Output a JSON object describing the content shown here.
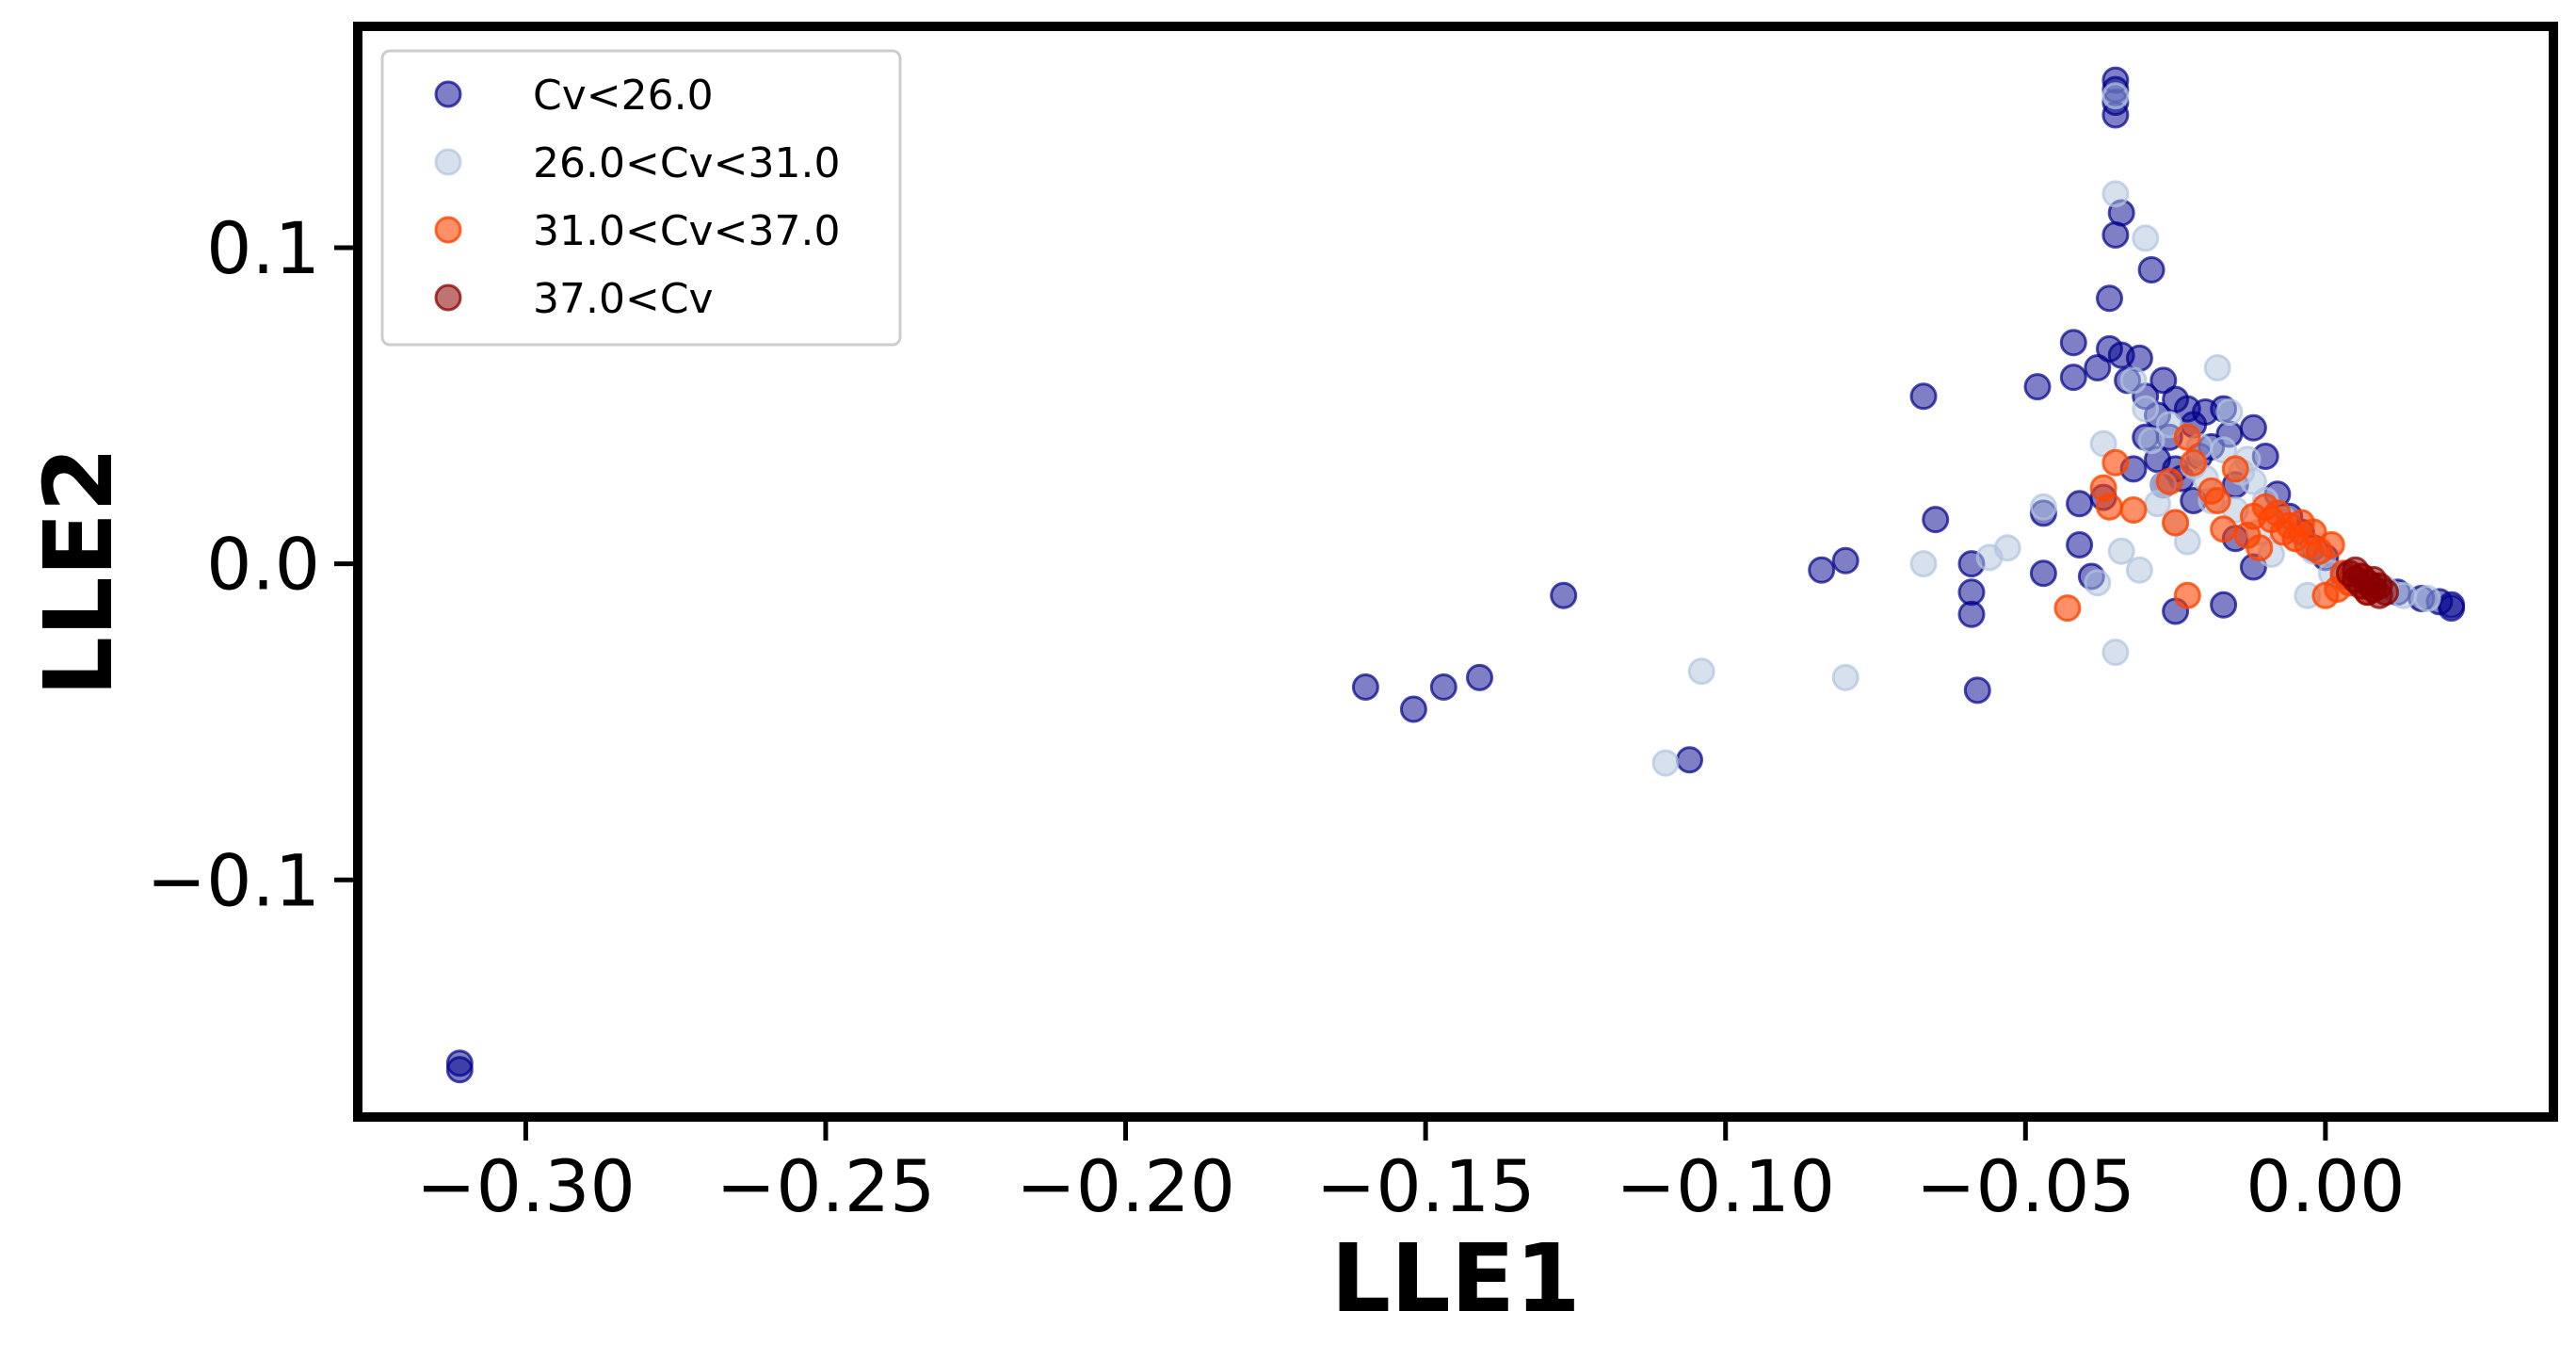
{
  "chart_data": {
    "type": "scatter",
    "title": "",
    "xlabel": "LLE1",
    "ylabel": "LLE2",
    "xlim": [
      -0.328,
      0.038
    ],
    "ylim": [
      -0.175,
      0.17
    ],
    "xticks": [
      -0.3,
      -0.25,
      -0.2,
      -0.15,
      -0.1,
      -0.05,
      0.0
    ],
    "xtick_labels": [
      "−0.30",
      "−0.25",
      "−0.20",
      "−0.15",
      "−0.10",
      "−0.05",
      "0.00"
    ],
    "yticks": [
      0.1,
      0.0,
      -0.1
    ],
    "ytick_labels": [
      "0.1",
      "0.0",
      "−0.1"
    ],
    "grid": false,
    "legend_position": "top-left",
    "series": [
      {
        "name": "Cv<26.0",
        "color": "#00008b",
        "alpha": 0.5,
        "points": [
          [
            -0.311,
            -0.158
          ],
          [
            -0.311,
            -0.16
          ],
          [
            -0.16,
            -0.039
          ],
          [
            -0.152,
            -0.046
          ],
          [
            -0.147,
            -0.039
          ],
          [
            -0.141,
            -0.036
          ],
          [
            -0.127,
            -0.01
          ],
          [
            -0.106,
            -0.062
          ],
          [
            -0.084,
            -0.002
          ],
          [
            -0.08,
            0.001
          ],
          [
            -0.067,
            0.053
          ],
          [
            -0.065,
            0.014
          ],
          [
            -0.059,
            -0.009
          ],
          [
            -0.059,
            -0.016
          ],
          [
            -0.059,
            0.0
          ],
          [
            -0.058,
            -0.04
          ],
          [
            -0.048,
            0.056
          ],
          [
            -0.047,
            0.016
          ],
          [
            -0.047,
            -0.003
          ],
          [
            -0.042,
            0.07
          ],
          [
            -0.042,
            0.059
          ],
          [
            -0.041,
            0.019
          ],
          [
            -0.041,
            0.006
          ],
          [
            -0.039,
            -0.004
          ],
          [
            -0.038,
            0.062
          ],
          [
            -0.037,
            0.021
          ],
          [
            -0.036,
            0.084
          ],
          [
            -0.036,
            0.068
          ],
          [
            -0.035,
            0.104
          ],
          [
            -0.034,
            0.111
          ],
          [
            -0.034,
            0.066
          ],
          [
            -0.035,
            0.153
          ],
          [
            -0.035,
            0.15
          ],
          [
            -0.035,
            0.146
          ],
          [
            -0.035,
            0.142
          ],
          [
            -0.033,
            0.058
          ],
          [
            -0.032,
            0.03
          ],
          [
            -0.031,
            0.065
          ],
          [
            -0.03,
            0.053
          ],
          [
            -0.03,
            0.04
          ],
          [
            -0.029,
            0.093
          ],
          [
            -0.028,
            0.047
          ],
          [
            -0.028,
            0.033
          ],
          [
            -0.027,
            0.058
          ],
          [
            -0.027,
            0.025
          ],
          [
            -0.026,
            0.04
          ],
          [
            -0.025,
            0.052
          ],
          [
            -0.025,
            0.03
          ],
          [
            -0.024,
            0.027
          ],
          [
            -0.023,
            0.049
          ],
          [
            -0.022,
            0.044
          ],
          [
            -0.022,
            0.02
          ],
          [
            -0.021,
            0.034
          ],
          [
            -0.02,
            0.048
          ],
          [
            -0.025,
            -0.015
          ],
          [
            -0.019,
            0.037
          ],
          [
            -0.017,
            0.049
          ],
          [
            -0.016,
            0.041
          ],
          [
            -0.015,
            0.025
          ],
          [
            -0.015,
            0.008
          ],
          [
            -0.017,
            -0.013
          ],
          [
            -0.012,
            0.043
          ],
          [
            -0.01,
            0.034
          ],
          [
            -0.008,
            0.022
          ],
          [
            -0.006,
            0.015
          ],
          [
            -0.004,
            0.01
          ],
          [
            -0.002,
            0.005
          ],
          [
            -0.012,
            -0.001
          ],
          [
            0.0,
            0.002
          ],
          [
            0.003,
            -0.004
          ],
          [
            0.008,
            -0.007
          ],
          [
            0.012,
            -0.009
          ],
          [
            0.016,
            -0.011
          ],
          [
            0.019,
            -0.012
          ],
          [
            0.021,
            -0.013
          ],
          [
            0.021,
            -0.014
          ]
        ]
      },
      {
        "name": "26.0<Cv<31.0",
        "color": "#b0c4de",
        "alpha": 0.5,
        "points": [
          [
            -0.11,
            -0.063
          ],
          [
            -0.104,
            -0.034
          ],
          [
            -0.08,
            -0.036
          ],
          [
            -0.067,
            0.0
          ],
          [
            -0.056,
            0.002
          ],
          [
            -0.053,
            0.005
          ],
          [
            -0.047,
            0.018
          ],
          [
            -0.038,
            -0.006
          ],
          [
            -0.037,
            0.038
          ],
          [
            -0.035,
            0.117
          ],
          [
            -0.035,
            0.148
          ],
          [
            -0.034,
            0.004
          ],
          [
            -0.035,
            -0.028
          ],
          [
            -0.032,
            0.058
          ],
          [
            -0.03,
            0.103
          ],
          [
            -0.03,
            0.049
          ],
          [
            -0.031,
            -0.002
          ],
          [
            -0.029,
            0.039
          ],
          [
            -0.028,
            0.019
          ],
          [
            -0.027,
            0.025
          ],
          [
            -0.026,
            0.044
          ],
          [
            -0.025,
            0.013
          ],
          [
            -0.023,
            0.007
          ],
          [
            -0.022,
            0.031
          ],
          [
            -0.021,
            0.037
          ],
          [
            -0.02,
            0.027
          ],
          [
            -0.019,
            0.02
          ],
          [
            -0.018,
            0.062
          ],
          [
            -0.017,
            0.036
          ],
          [
            -0.016,
            0.048
          ],
          [
            -0.015,
            0.017
          ],
          [
            -0.014,
            0.029
          ],
          [
            -0.013,
            0.033
          ],
          [
            -0.012,
            0.026
          ],
          [
            -0.011,
            0.01
          ],
          [
            -0.01,
            0.02
          ],
          [
            -0.009,
            0.003
          ],
          [
            -0.007,
            0.014
          ],
          [
            -0.005,
            0.008
          ],
          [
            -0.003,
            -0.01
          ],
          [
            -0.002,
            0.004
          ],
          [
            0.001,
            -0.003
          ],
          [
            0.004,
            -0.006
          ],
          [
            0.006,
            -0.005
          ],
          [
            0.01,
            -0.008
          ],
          [
            0.013,
            -0.01
          ],
          [
            0.017,
            -0.011
          ]
        ]
      },
      {
        "name": "31.0<Cv<37.0",
        "color": "#ff4500",
        "alpha": 0.6,
        "points": [
          [
            -0.043,
            -0.014
          ],
          [
            -0.037,
            0.024
          ],
          [
            -0.036,
            0.018
          ],
          [
            -0.035,
            0.032
          ],
          [
            -0.032,
            0.017
          ],
          [
            -0.026,
            0.026
          ],
          [
            -0.025,
            0.013
          ],
          [
            -0.023,
            -0.01
          ],
          [
            -0.023,
            0.04
          ],
          [
            -0.022,
            0.032
          ],
          [
            -0.019,
            0.023
          ],
          [
            -0.018,
            0.02
          ],
          [
            -0.017,
            0.011
          ],
          [
            -0.015,
            0.03
          ],
          [
            -0.013,
            0.009
          ],
          [
            -0.012,
            0.015
          ],
          [
            -0.011,
            0.005
          ],
          [
            -0.01,
            0.018
          ],
          [
            -0.009,
            0.014
          ],
          [
            -0.008,
            0.016
          ],
          [
            -0.007,
            0.01
          ],
          [
            -0.006,
            0.012
          ],
          [
            -0.005,
            0.008
          ],
          [
            -0.004,
            0.013
          ],
          [
            -0.003,
            0.006
          ],
          [
            -0.002,
            0.01
          ],
          [
            -0.001,
            0.004
          ],
          [
            0.0,
            -0.01
          ],
          [
            0.001,
            0.006
          ],
          [
            0.002,
            -0.008
          ],
          [
            0.003,
            -0.003
          ],
          [
            0.004,
            -0.006
          ],
          [
            0.006,
            -0.004
          ],
          [
            0.007,
            -0.009
          ]
        ]
      },
      {
        "name": "37.0<Cv",
        "color": "#8b0000",
        "alpha": 0.55,
        "points": [
          [
            0.004,
            -0.003
          ],
          [
            0.005,
            -0.005
          ],
          [
            0.005,
            -0.002
          ],
          [
            0.006,
            -0.007
          ],
          [
            0.006,
            -0.004
          ],
          [
            0.007,
            -0.006
          ],
          [
            0.007,
            -0.009
          ],
          [
            0.008,
            -0.005
          ],
          [
            0.008,
            -0.008
          ],
          [
            0.009,
            -0.007
          ],
          [
            0.009,
            -0.01
          ],
          [
            0.01,
            -0.009
          ]
        ]
      }
    ]
  }
}
